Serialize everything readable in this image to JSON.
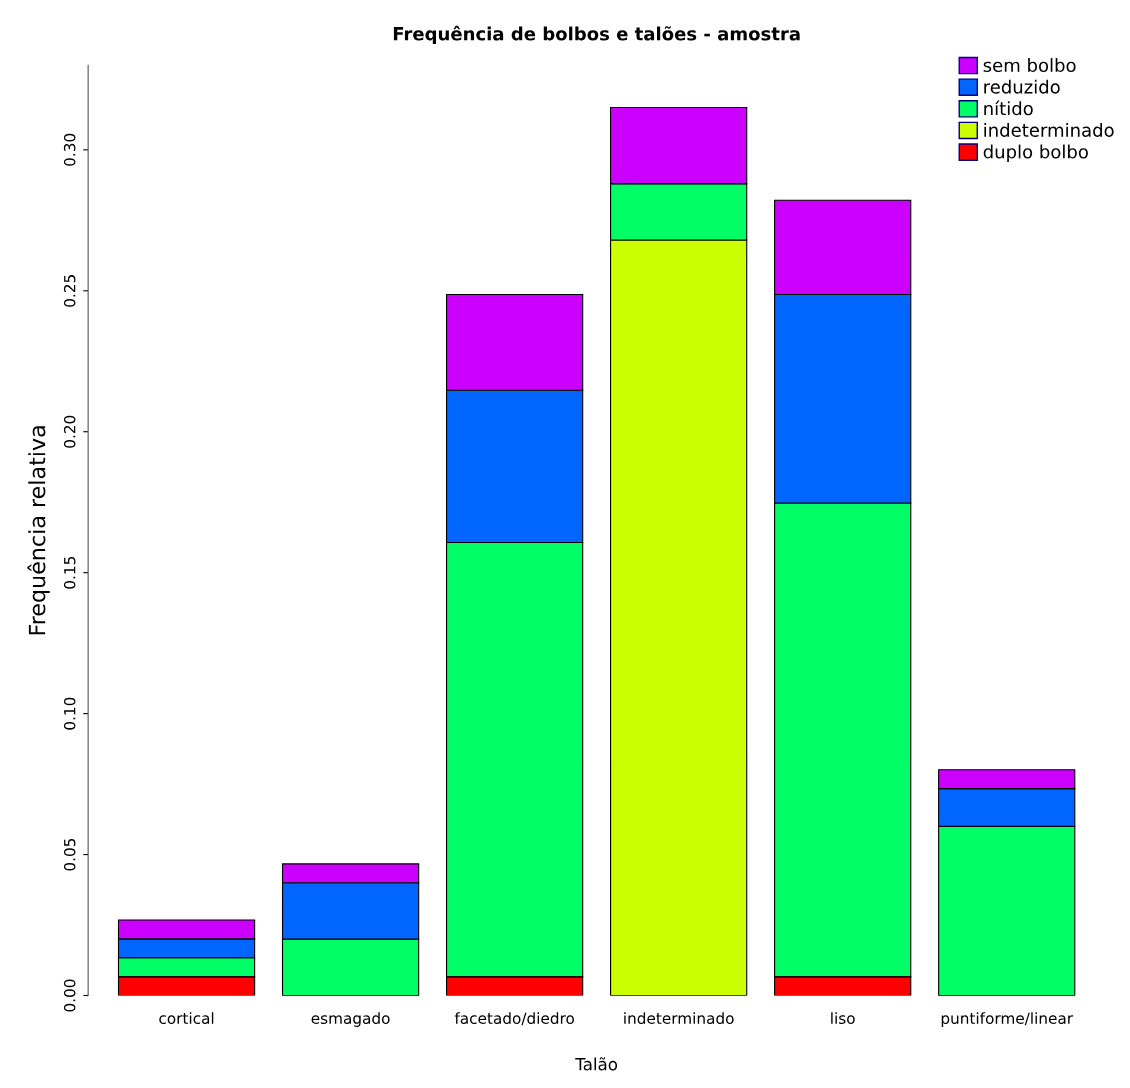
{
  "chart_data": {
    "type": "bar",
    "title": "Frequência de bolbos e talões - amostra",
    "xlabel": "Talão",
    "ylabel": "Frequência relativa",
    "categories": [
      "cortical",
      "esmagado",
      "facetado/diedro",
      "indeterminado",
      "liso",
      "puntiforme/linear"
    ],
    "stacked": true,
    "legend": "top right",
    "grid": false,
    "ylim": [
      0,
      0.33
    ],
    "yticks": [
      {
        "value": 0,
        "label": "0.00"
      },
      {
        "value": 0.05,
        "label": "0.05"
      },
      {
        "value": 0.1,
        "label": "0.10"
      },
      {
        "value": 0.15,
        "label": "0.15"
      },
      {
        "value": 0.2,
        "label": "0.20"
      },
      {
        "value": 0.25,
        "label": "0.25"
      },
      {
        "value": 0.3,
        "label": "0.30"
      }
    ],
    "series": [
      {
        "name": "duplo bolbo",
        "color": "#ff0000",
        "values": [
          0.0067,
          0,
          0.0067,
          0,
          0.0067,
          0
        ]
      },
      {
        "name": "indeterminado",
        "color": "#ccff00",
        "values": [
          0,
          0,
          0,
          0.268,
          0,
          0
        ]
      },
      {
        "name": "nítido",
        "color": "#00ff66",
        "values": [
          0.0067,
          0.02,
          0.154,
          0.02,
          0.168,
          0.06
        ]
      },
      {
        "name": "reduzido",
        "color": "#0066ff",
        "values": [
          0.0067,
          0.02,
          0.054,
          0,
          0.074,
          0.0134
        ]
      },
      {
        "name": "sem bolbo",
        "color": "#cc00ff",
        "values": [
          0.0067,
          0.0067,
          0.034,
          0.027,
          0.0334,
          0.0067
        ]
      }
    ]
  }
}
